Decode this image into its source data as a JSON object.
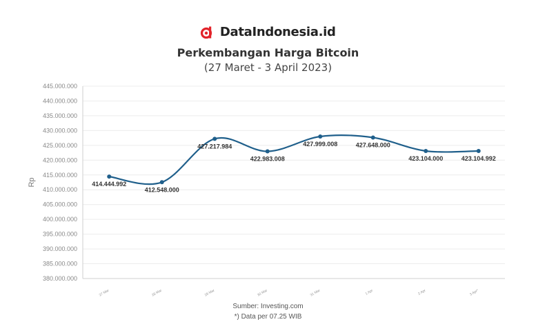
{
  "brand": {
    "name": "DataIndonesia.id",
    "logo_icon": "dataindonesia-logo-icon",
    "accent_color": "#e2232a"
  },
  "source": "Sumber: Investing.com",
  "note": "*) Data per 07.25 WIB",
  "chart_data": {
    "type": "line",
    "title": "Perkembangan Harga Bitcoin",
    "subtitle": "(27 Maret - 3 April 2023)",
    "xlabel": "",
    "ylabel": "Rp",
    "categories": [
      "27 Mar",
      "28 Mar",
      "29 Mar",
      "30 Mar",
      "31 Mar",
      "1 Apr",
      "2 Apr",
      "3 Apr*"
    ],
    "series": [
      {
        "values": [
          414444992,
          412548000,
          427217984,
          422983008,
          427999008,
          427648000,
          423104000,
          423104992
        ],
        "data_labels": [
          "414.444.992",
          "412.548.000",
          "427.217.984",
          "422.983.008",
          "427.999.008",
          "427.648.000",
          "423.104.000",
          "423.104.992"
        ],
        "color": "#1f5f8b"
      }
    ],
    "ylim": [
      380000000,
      445000000
    ],
    "yticks": [
      380000000,
      385000000,
      390000000,
      395000000,
      400000000,
      405000000,
      410000000,
      415000000,
      420000000,
      425000000,
      430000000,
      435000000,
      440000000,
      445000000
    ],
    "ytick_labels": [
      "380.000.000",
      "385.000.000",
      "390.000.000",
      "395.000.000",
      "400.000.000",
      "405.000.000",
      "410.000.000",
      "415.000.000",
      "420.000.000",
      "425.000.000",
      "430.000.000",
      "435.000.000",
      "440.000.000",
      "445.000.000"
    ],
    "grid": true,
    "legend": "none"
  }
}
